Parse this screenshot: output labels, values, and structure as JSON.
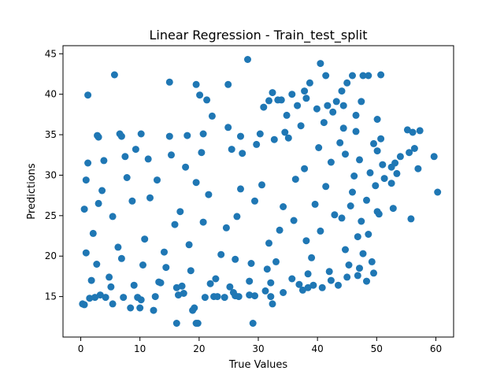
{
  "chart_data": {
    "type": "scatter",
    "title": "Linear Regression - Train_test_split",
    "xlabel": "True Values",
    "ylabel": "Predictions",
    "xlim": [
      -3.0,
      63.0
    ],
    "ylim": [
      10.0,
      46.0
    ],
    "xticks": [
      0,
      10,
      20,
      30,
      40,
      50,
      60
    ],
    "yticks": [
      15,
      20,
      25,
      30,
      35,
      40,
      45
    ],
    "marker_color": "#1f77b4",
    "grid": false,
    "legend": "none",
    "series": [
      {
        "points": [
          [
            0.3,
            14.1
          ],
          [
            0.6,
            14.0
          ],
          [
            1.2,
            39.9
          ],
          [
            1.5,
            14.8
          ],
          [
            2.4,
            14.9
          ],
          [
            2.8,
            34.9
          ],
          [
            3.0,
            34.7
          ],
          [
            3.3,
            15.2
          ],
          [
            4.2,
            14.9
          ],
          [
            5.4,
            14.1
          ],
          [
            5.7,
            42.4
          ],
          [
            6.6,
            35.1
          ],
          [
            6.9,
            34.8
          ],
          [
            7.2,
            14.9
          ],
          [
            8.4,
            13.6
          ],
          [
            9.6,
            14.9
          ],
          [
            10.0,
            13.6
          ],
          [
            10.2,
            14.6
          ],
          [
            10.2,
            35.1
          ],
          [
            12.3,
            13.3
          ],
          [
            12.6,
            15.0
          ],
          [
            15.0,
            41.5
          ],
          [
            15.0,
            34.8
          ],
          [
            16.2,
            16.1
          ],
          [
            16.5,
            15.2
          ],
          [
            16.2,
            11.7
          ],
          [
            17.4,
            15.4
          ],
          [
            18.0,
            34.9
          ],
          [
            18.9,
            13.3
          ],
          [
            19.2,
            13.6
          ],
          [
            19.5,
            41.2
          ],
          [
            19.5,
            11.7
          ],
          [
            19.8,
            11.7
          ],
          [
            20.1,
            39.9
          ],
          [
            20.7,
            35.1
          ],
          [
            21.0,
            14.9
          ],
          [
            21.3,
            39.3
          ],
          [
            22.2,
            37.3
          ],
          [
            22.5,
            15.0
          ],
          [
            23.1,
            15.0
          ],
          [
            24.3,
            14.9
          ],
          [
            24.9,
            41.2
          ],
          [
            24.9,
            35.9
          ],
          [
            25.8,
            15.5
          ],
          [
            26.1,
            15.1
          ],
          [
            26.7,
            15.0
          ],
          [
            27.0,
            34.8
          ],
          [
            28.2,
            44.3
          ],
          [
            28.5,
            15.2
          ],
          [
            29.1,
            11.7
          ],
          [
            29.4,
            15.1
          ],
          [
            30.3,
            35.1
          ],
          [
            30.9,
            38.4
          ],
          [
            31.2,
            15.7
          ],
          [
            31.8,
            39.2
          ],
          [
            32.4,
            14.1
          ],
          [
            32.1,
            15.0
          ],
          [
            32.4,
            40.2
          ],
          [
            33.3,
            39.3
          ],
          [
            33.9,
            39.3
          ],
          [
            34.2,
            15.5
          ],
          [
            34.8,
            37.4
          ],
          [
            35.7,
            40.0
          ],
          [
            36.6,
            38.6
          ],
          [
            36.9,
            16.5
          ],
          [
            37.5,
            15.8
          ],
          [
            37.8,
            40.4
          ],
          [
            38.1,
            39.5
          ],
          [
            38.4,
            16.1
          ],
          [
            38.7,
            41.4
          ],
          [
            39.3,
            16.4
          ],
          [
            39.9,
            38.2
          ],
          [
            40.5,
            43.8
          ],
          [
            40.8,
            16.1
          ],
          [
            41.4,
            42.3
          ],
          [
            41.7,
            38.6
          ],
          [
            42.3,
            17.0
          ],
          [
            42.6,
            37.8
          ],
          [
            43.5,
            16.4
          ],
          [
            43.2,
            39.1
          ],
          [
            44.1,
            40.4
          ],
          [
            44.4,
            38.6
          ],
          [
            45.0,
            41.4
          ],
          [
            45.0,
            17.4
          ],
          [
            45.9,
            42.3
          ],
          [
            46.5,
            37.4
          ],
          [
            46.8,
            17.6
          ],
          [
            47.4,
            39.1
          ],
          [
            47.1,
            18.5
          ],
          [
            47.7,
            42.3
          ],
          [
            48.3,
            16.9
          ],
          [
            48.6,
            42.3
          ],
          [
            49.5,
            17.9
          ],
          [
            50.1,
            36.9
          ],
          [
            50.7,
            42.4
          ],
          [
            50.1,
            33.0
          ],
          [
            50.4,
            25.2
          ],
          [
            50.7,
            34.5
          ],
          [
            51.0,
            31.3
          ],
          [
            52.5,
            31.0
          ],
          [
            52.8,
            25.9
          ],
          [
            52.5,
            29.0
          ],
          [
            53.4,
            30.2
          ],
          [
            53.1,
            31.5
          ],
          [
            54.0,
            32.3
          ],
          [
            55.2,
            35.6
          ],
          [
            55.5,
            32.8
          ],
          [
            55.8,
            24.6
          ],
          [
            56.1,
            35.3
          ],
          [
            56.4,
            33.3
          ],
          [
            57.3,
            35.5
          ],
          [
            57.0,
            30.8
          ],
          [
            59.7,
            32.3
          ],
          [
            60.3,
            27.9
          ],
          [
            48.6,
            22.7
          ],
          [
            48.3,
            26.9
          ],
          [
            47.7,
            20.3
          ],
          [
            49.2,
            19.3
          ],
          [
            50.1,
            25.5
          ],
          [
            46.8,
            22.4
          ],
          [
            45.9,
            27.9
          ],
          [
            44.4,
            35.8
          ],
          [
            44.7,
            32.6
          ],
          [
            2.1,
            22.8
          ],
          [
            3.6,
            28.1
          ],
          [
            5.4,
            24.9
          ],
          [
            6.9,
            19.7
          ],
          [
            8.7,
            26.8
          ],
          [
            10.8,
            22.1
          ],
          [
            12.9,
            29.4
          ],
          [
            14.4,
            18.6
          ],
          [
            16.8,
            25.5
          ],
          [
            18.3,
            21.4
          ],
          [
            21.6,
            27.6
          ],
          [
            23.7,
            20.2
          ],
          [
            26.4,
            24.9
          ],
          [
            28.8,
            19.1
          ],
          [
            30.6,
            28.8
          ],
          [
            33.6,
            23.2
          ],
          [
            36.3,
            29.5
          ],
          [
            38.1,
            21.9
          ],
          [
            40.2,
            33.4
          ],
          [
            42.9,
            25.1
          ],
          [
            44.7,
            20.8
          ],
          [
            46.2,
            29.9
          ],
          [
            47.4,
            24.3
          ],
          [
            49.8,
            28.7
          ],
          [
            1.2,
            31.5
          ],
          [
            4.8,
            17.4
          ],
          [
            9.3,
            33.2
          ],
          [
            13.5,
            16.7
          ],
          [
            17.7,
            31.0
          ],
          [
            22.8,
            17.2
          ],
          [
            27.3,
            32.7
          ],
          [
            31.5,
            18.4
          ],
          [
            35.1,
            34.6
          ],
          [
            39.0,
            19.8
          ],
          [
            43.8,
            34.0
          ],
          [
            48.9,
            30.3
          ],
          [
            51.3,
            29.6
          ],
          [
            49.5,
            33.9
          ],
          [
            46.5,
            35.4
          ],
          [
            41.1,
            36.5
          ],
          [
            37.2,
            36.1
          ],
          [
            34.5,
            35.3
          ],
          [
            32.7,
            34.4
          ],
          [
            29.7,
            33.8
          ],
          [
            25.5,
            33.2
          ],
          [
            20.4,
            32.8
          ],
          [
            15.3,
            32.5
          ],
          [
            11.4,
            32.0
          ],
          [
            7.5,
            32.3
          ],
          [
            3.9,
            31.8
          ],
          [
            0.9,
            29.4
          ],
          [
            0.6,
            25.8
          ],
          [
            0.9,
            20.4
          ],
          [
            1.8,
            17.0
          ],
          [
            5.1,
            16.2
          ],
          [
            9.0,
            16.4
          ],
          [
            13.2,
            16.8
          ],
          [
            17.1,
            16.3
          ],
          [
            21.9,
            16.6
          ],
          [
            25.2,
            16.2
          ],
          [
            28.5,
            16.9
          ],
          [
            32.1,
            16.7
          ],
          [
            35.7,
            17.2
          ],
          [
            38.4,
            17.8
          ],
          [
            42.0,
            18.1
          ],
          [
            45.3,
            18.9
          ],
          [
            3.0,
            26.5
          ],
          [
            6.3,
            21.1
          ],
          [
            11.7,
            27.2
          ],
          [
            15.9,
            23.9
          ],
          [
            19.5,
            29.1
          ],
          [
            24.6,
            23.5
          ],
          [
            29.4,
            26.8
          ],
          [
            34.2,
            26.1
          ],
          [
            37.8,
            30.8
          ],
          [
            41.4,
            28.6
          ],
          [
            44.1,
            24.7
          ],
          [
            47.1,
            31.9
          ],
          [
            7.8,
            29.7
          ],
          [
            14.1,
            20.5
          ],
          [
            20.7,
            24.2
          ],
          [
            27.0,
            28.3
          ],
          [
            31.8,
            21.6
          ],
          [
            36.0,
            24.4
          ],
          [
            39.6,
            26.4
          ],
          [
            42.3,
            31.6
          ],
          [
            45.6,
            26.2
          ],
          [
            2.7,
            19.0
          ],
          [
            10.5,
            18.9
          ],
          [
            18.6,
            18.2
          ],
          [
            26.1,
            19.6
          ],
          [
            33.0,
            19.3
          ],
          [
            40.5,
            23.1
          ]
        ]
      }
    ]
  }
}
